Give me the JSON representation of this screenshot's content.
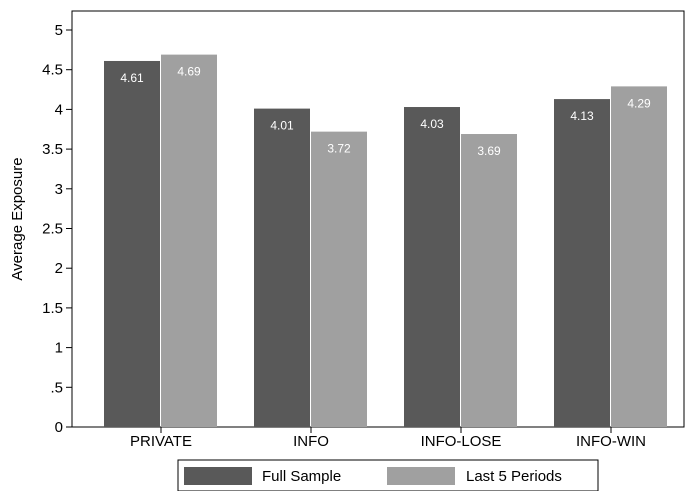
{
  "chart_data": {
    "type": "bar",
    "title": "",
    "xlabel": "",
    "ylabel": "Average Exposure",
    "ylim": [
      0,
      5
    ],
    "yticks": [
      "0",
      ".5",
      "1",
      "1.5",
      "2",
      "2.5",
      "3",
      "3.5",
      "4",
      "4.5",
      "5"
    ],
    "categories": [
      "PRIVATE",
      "INFO",
      "INFO-LOSE",
      "INFO-WIN"
    ],
    "series": [
      {
        "name": "Full Sample",
        "color": "#595959",
        "values": [
          4.61,
          4.01,
          4.03,
          4.13
        ],
        "labels": [
          "4.61",
          "4.01",
          "4.03",
          "4.13"
        ]
      },
      {
        "name": "Last 5 Periods",
        "color": "#a0a0a0",
        "values": [
          4.69,
          3.72,
          3.69,
          4.29
        ],
        "labels": [
          "4.69",
          "3.72",
          "3.69",
          "4.29"
        ]
      }
    ],
    "grid": false,
    "legend_position": "bottom"
  }
}
